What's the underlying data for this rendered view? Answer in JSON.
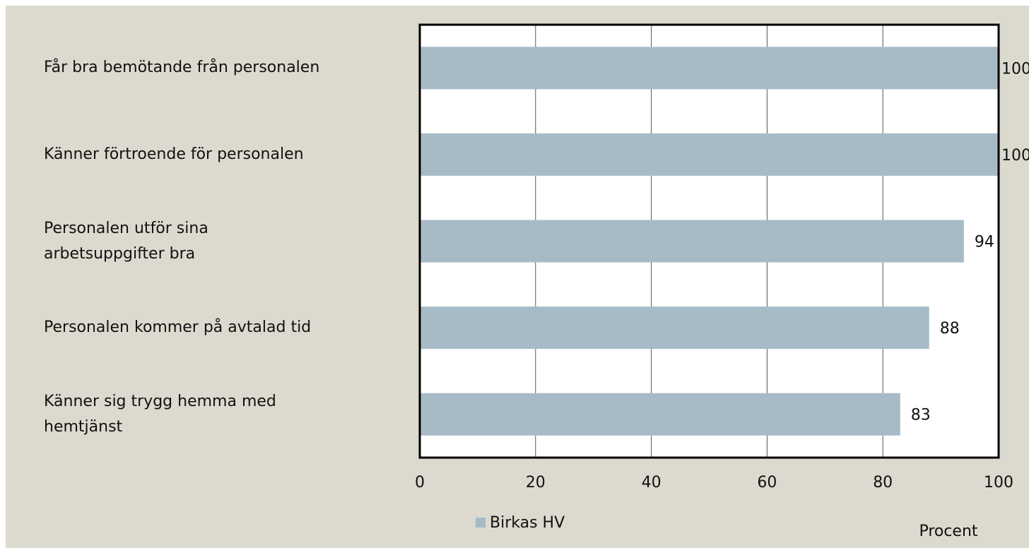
{
  "chart_data": {
    "type": "barh",
    "categories": [
      "Får bra bemötande från personalen",
      "Känner förtroende för personalen",
      "Personalen utför sina\narbetsuppgifter bra",
      "Personalen kommer på avtalad tid",
      "Känner sig trygg hemma med\nhemtjänst"
    ],
    "series": [
      {
        "name": "Birkas HV",
        "color": "#a7bbc7",
        "values": [
          100,
          100,
          94,
          88,
          83
        ]
      }
    ],
    "xlim": [
      0,
      100
    ],
    "xticks": [
      0,
      20,
      40,
      60,
      80,
      100
    ],
    "grid": true,
    "xlabel": "Procent",
    "legend": "bottom"
  }
}
